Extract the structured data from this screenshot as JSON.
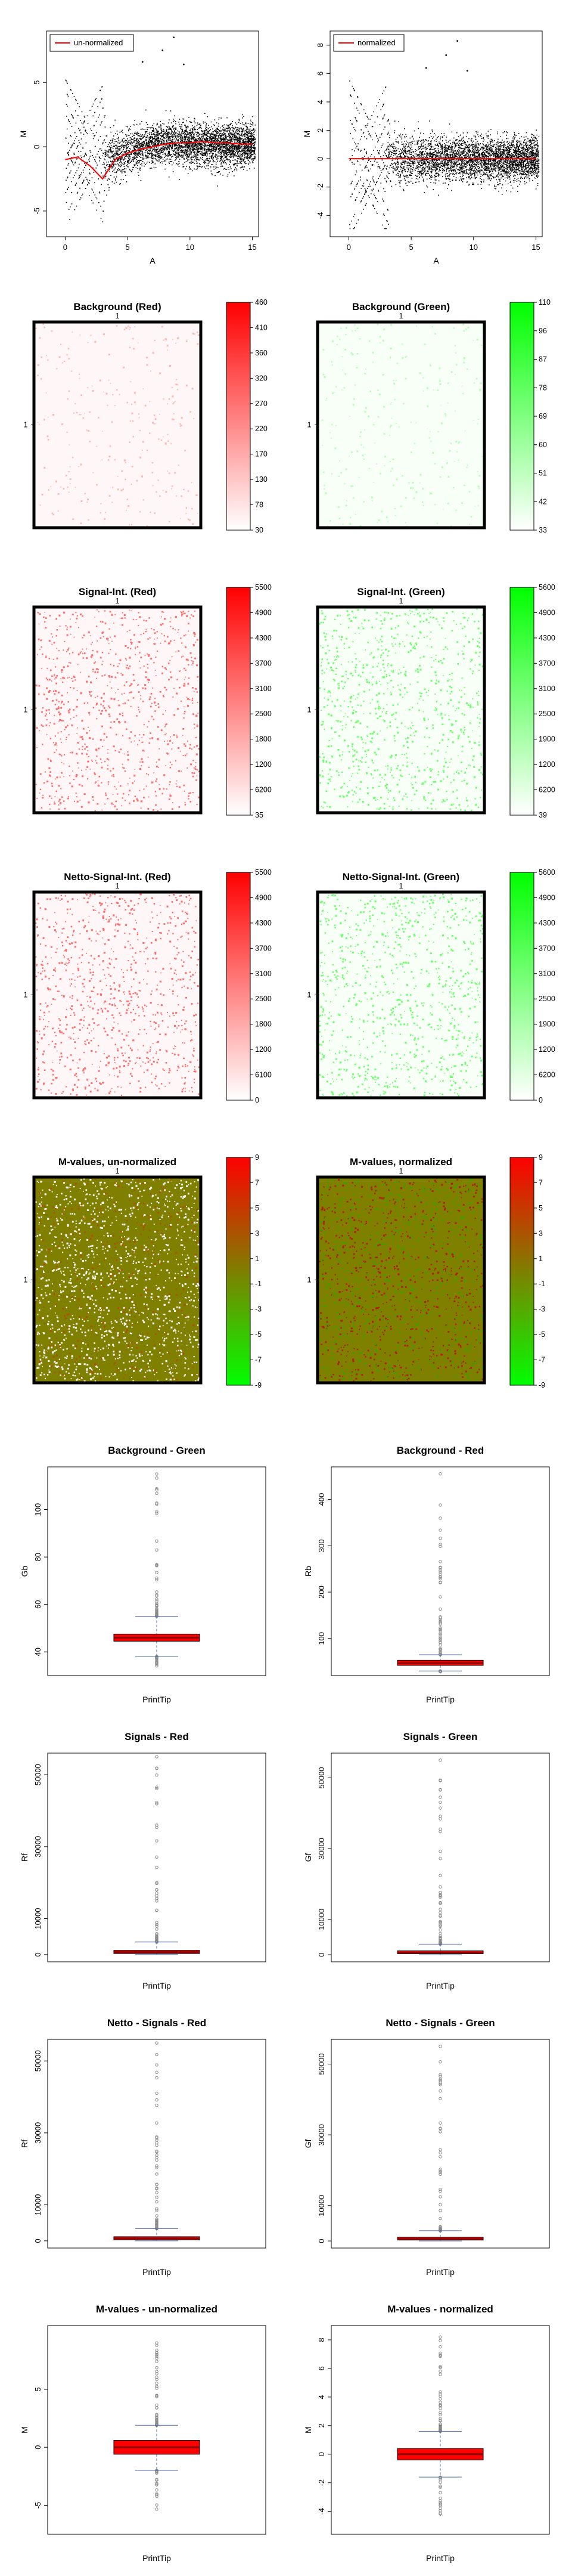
{
  "colors": {
    "red": "#ff0000",
    "green": "#00ff00",
    "mid_olive": "#7f7f00",
    "box_fill": "#ff0000",
    "box_dark": "#8b0000",
    "whisker": "#4d6aa8",
    "point": "#000000",
    "outlier": "#888888"
  },
  "ma_plots": {
    "left": {
      "legend": "un-normalized",
      "xlabel": "A",
      "ylabel": "M",
      "xticks": [
        "0",
        "5",
        "10",
        "15"
      ],
      "yticks": [
        "-5",
        "0",
        "5"
      ],
      "xlim": [
        -1.5,
        15.5
      ],
      "ylim": [
        -7,
        9
      ]
    },
    "right": {
      "legend": "normalized",
      "xlabel": "A",
      "ylabel": "M",
      "xticks": [
        "0",
        "5",
        "10",
        "15"
      ],
      "yticks": [
        "-4",
        "-2",
        "0",
        "2",
        "4",
        "6",
        "8"
      ],
      "xlim": [
        -1.5,
        15.5
      ],
      "ylim": [
        -5.5,
        9
      ]
    }
  },
  "image_plots": [
    {
      "title": "Background (Red)",
      "row_label": "1",
      "top_label": "1",
      "colors": [
        "#ffffff",
        "#ff0000"
      ],
      "scale": [
        "460",
        "410",
        "360",
        "320",
        "270",
        "220",
        "170",
        "130",
        "78",
        "30"
      ]
    },
    {
      "title": "Background (Green)",
      "row_label": "1",
      "top_label": "1",
      "colors": [
        "#ffffff",
        "#00ff00"
      ],
      "scale": [
        "110",
        "96",
        "87",
        "78",
        "69",
        "60",
        "51",
        "42",
        "33"
      ]
    },
    {
      "title": "Signal-Int. (Red)",
      "row_label": "1",
      "top_label": "1",
      "colors": [
        "#ffffff",
        "#ff0000"
      ],
      "scale": [
        "5500",
        "4900",
        "4300",
        "3700",
        "3100",
        "2500",
        "1800",
        "1200",
        "6200",
        "35"
      ]
    },
    {
      "title": "Signal-Int. (Green)",
      "row_label": "1",
      "top_label": "1",
      "colors": [
        "#ffffff",
        "#00ff00"
      ],
      "scale": [
        "5600",
        "4900",
        "4300",
        "3700",
        "3100",
        "2500",
        "1900",
        "1200",
        "6200",
        "39"
      ]
    },
    {
      "title": "Netto-Signal-Int. (Red)",
      "row_label": "1",
      "top_label": "1",
      "colors": [
        "#ffffff",
        "#ff0000"
      ],
      "scale": [
        "5500",
        "4900",
        "4300",
        "3700",
        "3100",
        "2500",
        "1800",
        "1200",
        "6100",
        "0"
      ]
    },
    {
      "title": "Netto-Signal-Int. (Green)",
      "row_label": "1",
      "top_label": "1",
      "colors": [
        "#ffffff",
        "#00ff00"
      ],
      "scale": [
        "5600",
        "4900",
        "4300",
        "3700",
        "3100",
        "2500",
        "1900",
        "1200",
        "6200",
        "0"
      ]
    },
    {
      "title": "M-values, un-normalized",
      "row_label": "1",
      "top_label": "1",
      "colors": [
        "#00ff00",
        "#7f7f00",
        "#ff0000"
      ],
      "scale": [
        "9",
        "7",
        "5",
        "3",
        "1",
        "-1",
        "-3",
        "-5",
        "-7",
        "-9"
      ]
    },
    {
      "title": "M-values, normalized",
      "row_label": "1",
      "top_label": "1",
      "colors": [
        "#00ff00",
        "#7f7f00",
        "#ff0000"
      ],
      "scale": [
        "9",
        "7",
        "5",
        "3",
        "1",
        "-1",
        "-3",
        "-5",
        "-7",
        "-9"
      ]
    }
  ],
  "boxplots": [
    {
      "title": "Background - Green",
      "xlabel": "PrintTip",
      "ylabel": "Gb",
      "ylim": [
        30,
        118
      ],
      "yticks": [
        40,
        60,
        80,
        100
      ],
      "median": 46,
      "q1": 44.5,
      "q3": 47.5,
      "whisker_low": 38,
      "whisker_high": 55,
      "max": 115,
      "min": 34
    },
    {
      "title": "Background - Red",
      "xlabel": "PrintTip",
      "ylabel": "Rb",
      "ylim": [
        20,
        470
      ],
      "yticks": [
        100,
        200,
        300,
        400
      ],
      "median": 47,
      "q1": 42,
      "q3": 53,
      "whisker_low": 30,
      "whisker_high": 65,
      "max": 455,
      "min": 28
    },
    {
      "title": "Signals - Red",
      "xlabel": "PrintTip",
      "ylabel": "Rf",
      "ylim": [
        -2000,
        56000
      ],
      "yticks": [
        0,
        10000,
        30000,
        50000
      ],
      "median": 700,
      "q1": 300,
      "q3": 1200,
      "whisker_low": 30,
      "whisker_high": 3500,
      "max": 55000,
      "min": 30
    },
    {
      "title": "Signals - Green",
      "xlabel": "PrintTip",
      "ylabel": "Gf",
      "ylim": [
        -2000,
        57000
      ],
      "yticks": [
        0,
        10000,
        30000,
        50000
      ],
      "median": 600,
      "q1": 300,
      "q3": 1100,
      "whisker_low": 30,
      "whisker_high": 3000,
      "max": 55000,
      "min": 30
    },
    {
      "title": "Netto - Signals - Red",
      "xlabel": "PrintTip",
      "ylabel": "Rf",
      "ylim": [
        -2000,
        56000
      ],
      "yticks": [
        0,
        10000,
        30000,
        50000
      ],
      "median": 650,
      "q1": 250,
      "q3": 1150,
      "whisker_low": 0,
      "whisker_high": 3400,
      "max": 55000,
      "min": 0
    },
    {
      "title": "Netto - Signals - Green",
      "xlabel": "PrintTip",
      "ylabel": "Gf",
      "ylim": [
        -2000,
        57000
      ],
      "yticks": [
        0,
        10000,
        30000,
        50000
      ],
      "median": 550,
      "q1": 250,
      "q3": 1050,
      "whisker_low": 0,
      "whisker_high": 2900,
      "max": 55000,
      "min": 0
    },
    {
      "title": "M-values - un-normalized",
      "xlabel": "PrintTip",
      "ylabel": "M",
      "ylim": [
        -7.5,
        10.5
      ],
      "yticks": [
        -5,
        0,
        5
      ],
      "median": 0,
      "q1": -0.6,
      "q3": 0.6,
      "whisker_low": -2,
      "whisker_high": 1.9,
      "max": 9,
      "min": -6.2
    },
    {
      "title": "M-values - normalized",
      "xlabel": "PrintTip",
      "ylabel": "M",
      "ylim": [
        -5.6,
        9
      ],
      "yticks": [
        -4,
        -2,
        0,
        2,
        4,
        6,
        8
      ],
      "median": 0,
      "q1": -0.4,
      "q3": 0.4,
      "whisker_low": -1.6,
      "whisker_high": 1.6,
      "max": 8.2,
      "min": -4.4
    }
  ],
  "chart_data": [
    {
      "type": "scatter",
      "title": "",
      "legend": [
        "un-normalized"
      ],
      "xlabel": "A",
      "ylabel": "M",
      "xlim": [
        -1.5,
        15.5
      ],
      "ylim": [
        -7,
        9
      ],
      "series": [
        {
          "name": "un-normalized",
          "x": [
            0,
            1,
            2,
            3,
            4,
            5,
            6,
            7,
            8,
            9,
            10,
            11,
            12,
            13,
            14,
            15
          ],
          "y": [
            -1.0,
            -0.8,
            -1.5,
            -2.5,
            -1.0,
            -0.5,
            -0.2,
            0,
            0.2,
            0.3,
            0.3,
            0.4,
            0.3,
            0.3,
            0.2,
            0.2
          ]
        }
      ]
    },
    {
      "type": "scatter",
      "title": "",
      "legend": [
        "normalized"
      ],
      "xlabel": "A",
      "ylabel": "M",
      "xlim": [
        -1.5,
        15.5
      ],
      "ylim": [
        -5.5,
        9
      ],
      "series": [
        {
          "name": "normalized",
          "x": [
            0,
            1,
            2,
            3,
            4,
            5,
            6,
            7,
            8,
            9,
            10,
            11,
            12,
            13,
            14,
            15
          ],
          "y": [
            0,
            0,
            0,
            0,
            0,
            0,
            0,
            0,
            0,
            0,
            0,
            0,
            0,
            0,
            0,
            0
          ]
        }
      ]
    },
    {
      "type": "heatmap",
      "title": "Background (Red)",
      "range": [
        30,
        460
      ]
    },
    {
      "type": "heatmap",
      "title": "Background (Green)",
      "range": [
        33,
        110
      ]
    },
    {
      "type": "heatmap",
      "title": "Signal-Int. (Red)",
      "range": [
        35,
        5500
      ]
    },
    {
      "type": "heatmap",
      "title": "Signal-Int. (Green)",
      "range": [
        39,
        5600
      ]
    },
    {
      "type": "heatmap",
      "title": "Netto-Signal-Int. (Red)",
      "range": [
        0,
        5500
      ]
    },
    {
      "type": "heatmap",
      "title": "Netto-Signal-Int. (Green)",
      "range": [
        0,
        5600
      ]
    },
    {
      "type": "heatmap",
      "title": "M-values, un-normalized",
      "range": [
        -9,
        9
      ]
    },
    {
      "type": "heatmap",
      "title": "M-values, normalized",
      "range": [
        -9,
        9
      ]
    },
    {
      "type": "box",
      "title": "Background - Green",
      "categories": [
        "PrintTip"
      ],
      "median": 46
    },
    {
      "type": "box",
      "title": "Background - Red",
      "categories": [
        "PrintTip"
      ],
      "median": 47
    },
    {
      "type": "box",
      "title": "Signals - Red",
      "categories": [
        "PrintTip"
      ],
      "median": 700
    },
    {
      "type": "box",
      "title": "Signals - Green",
      "categories": [
        "PrintTip"
      ],
      "median": 600
    },
    {
      "type": "box",
      "title": "Netto - Signals - Red",
      "categories": [
        "PrintTip"
      ],
      "median": 650
    },
    {
      "type": "box",
      "title": "Netto - Signals - Green",
      "categories": [
        "PrintTip"
      ],
      "median": 550
    },
    {
      "type": "box",
      "title": "M-values - un-normalized",
      "categories": [
        "PrintTip"
      ],
      "median": 0
    },
    {
      "type": "box",
      "title": "M-values - normalized",
      "categories": [
        "PrintTip"
      ],
      "median": 0
    }
  ]
}
